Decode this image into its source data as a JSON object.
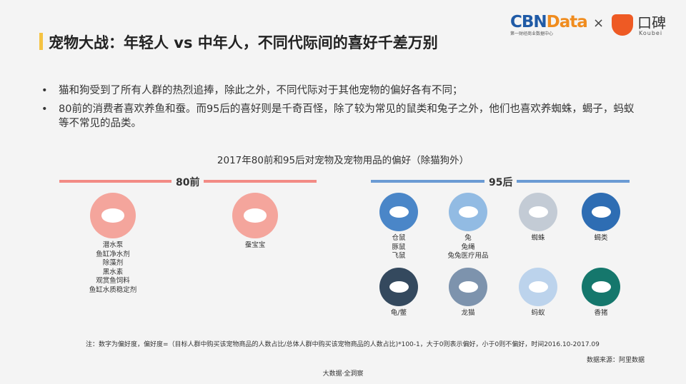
{
  "header": {
    "title": "宠物大战：年轻人 vs 中年人，不同代际间的喜好千差万别",
    "accent_color": "#f5c342"
  },
  "logo": {
    "cbn_part1": "CBN",
    "cbn_part2": "Data",
    "cbn_sub": "第一财经商业数据中心",
    "times": "×",
    "koubei": "口碑",
    "koubei_sub": "Koubei"
  },
  "bullets": [
    {
      "dot": "•",
      "text": "猫和狗受到了所有人群的热烈追捧，除此之外，不同代际对于其他宠物的偏好各有不同；"
    },
    {
      "dot": "•",
      "text": "80前的消费者喜欢养鱼和蚕。而95后的喜好则是千奇百怪，除了较为常见的鼠类和兔子之外，他们也喜欢养蜘蛛，蝎子，蚂蚁等不常见的品类。"
    }
  ],
  "chart_subtitle": "2017年80前和95后对宠物及宠物用品的偏好（除猫狗外）",
  "groups": {
    "g80": {
      "label": "80前",
      "color": "#f28b85",
      "items": [
        {
          "icon": "fish-icon",
          "color": "#f4a59c",
          "caption": [
            "潜水泵",
            "鱼缸净水剂",
            "除藻剂",
            "黑水素",
            "观赏鱼饲料",
            "鱼缸水质稳定剂"
          ]
        },
        {
          "icon": "silkworm-icon",
          "color": "#f4a59c",
          "caption": [
            "蚕宝宝"
          ]
        }
      ]
    },
    "g95": {
      "label": "95后",
      "color": "#6b9bd4",
      "items": [
        {
          "icon": "mouse-icon",
          "color": "#4a86c8",
          "caption": [
            "仓鼠",
            "豚鼠",
            "飞鼠"
          ]
        },
        {
          "icon": "rabbit-icon",
          "color": "#92bbe3",
          "caption": [
            "兔",
            "兔绳",
            "兔兔医疗用品"
          ]
        },
        {
          "icon": "spider-icon",
          "color": "#c3cbd5",
          "caption": [
            "蜘蛛"
          ]
        },
        {
          "icon": "scorpion-icon",
          "color": "#2e6db3",
          "caption": [
            "蝎类"
          ]
        },
        {
          "icon": "turtle-icon",
          "color": "#34495e",
          "caption": [
            "龟/鳖"
          ]
        },
        {
          "icon": "chinchilla-icon",
          "color": "#7d93ad",
          "caption": [
            "龙猫"
          ]
        },
        {
          "icon": "ant-icon",
          "color": "#bcd3ec",
          "caption": [
            "蚂蚁"
          ]
        },
        {
          "icon": "pig-icon",
          "color": "#15776c",
          "caption": [
            "香猪"
          ]
        }
      ]
    }
  },
  "note": "注：数字为偏好度，偏好度=（目标人群中购买该宠物商品的人数占比/总体人群中购买该宠物商品的人数占比)*100-1，大于0则表示偏好，小于0则不偏好，时间2016.10-2017.09",
  "source": "数据来源：阿里数据",
  "footer": "大数据·全洞察"
}
